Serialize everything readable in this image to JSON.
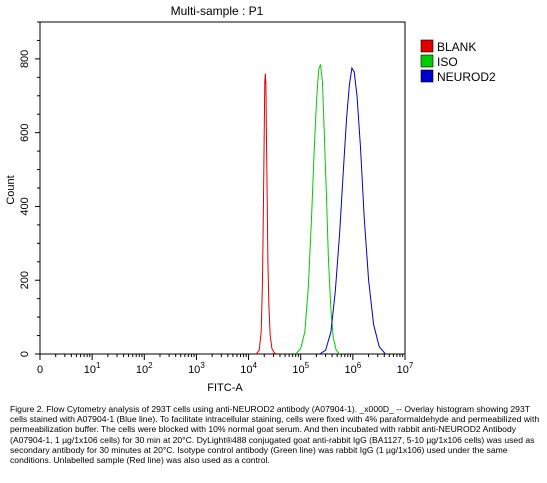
{
  "chart_data": {
    "type": "line",
    "title": "Multi-sample : P1",
    "xlabel": "FITC-A",
    "ylabel": "Count",
    "x_scale": "log",
    "xlim": [
      1,
      10000000
    ],
    "ylim": [
      0,
      900
    ],
    "x_ticks": [
      {
        "value": 1,
        "base": "0",
        "exp": ""
      },
      {
        "value": 10,
        "base": "10",
        "exp": "1"
      },
      {
        "value": 100,
        "base": "10",
        "exp": "2"
      },
      {
        "value": 1000,
        "base": "10",
        "exp": "3"
      },
      {
        "value": 10000,
        "base": "10",
        "exp": "4"
      },
      {
        "value": 100000,
        "base": "10",
        "exp": "5"
      },
      {
        "value": 1000000,
        "base": "10",
        "exp": "6"
      },
      {
        "value": 10000000,
        "base": "10",
        "exp": "7"
      }
    ],
    "y_ticks": [
      0,
      200,
      400,
      600,
      800
    ],
    "legend_position": "top-right, outside plot",
    "series": [
      {
        "name": "BLANK",
        "color": "#e00000",
        "x": [
          14000,
          16000,
          17500,
          18500,
          19300,
          20000,
          20500,
          21000,
          21500,
          22000,
          22800,
          23500,
          24500,
          26000,
          28000,
          31000,
          35000
        ],
        "y": [
          0,
          10,
          60,
          200,
          420,
          620,
          740,
          760,
          730,
          600,
          420,
          250,
          130,
          50,
          15,
          3,
          0
        ]
      },
      {
        "name": "ISO",
        "color": "#00cc00",
        "x": [
          80000,
          100000,
          120000,
          140000,
          160000,
          180000,
          200000,
          220000,
          240000,
          260000,
          280000,
          310000,
          340000,
          380000,
          420000,
          480000,
          560000
        ],
        "y": [
          0,
          15,
          60,
          180,
          360,
          540,
          680,
          770,
          785,
          740,
          620,
          440,
          260,
          120,
          45,
          10,
          0
        ]
      },
      {
        "name": "NEUROD2",
        "color": "#0000cc",
        "x": [
          230000,
          300000,
          380000,
          460000,
          560000,
          660000,
          760000,
          860000,
          960000,
          1060000,
          1200000,
          1400000,
          1650000,
          2000000,
          2500000,
          3200000,
          4200000
        ],
        "y": [
          0,
          10,
          60,
          170,
          330,
          500,
          640,
          730,
          775,
          765,
          700,
          560,
          370,
          200,
          80,
          20,
          0
        ]
      }
    ]
  },
  "caption": "Figure 2. Flow Cytometry analysis of 293T cells using anti-NEUROD2 antibody (A07904-1). _x000D_ -- Overlay histogram showing 293T cells stained with A07904-1 (Blue line). To facilitate intracellular staining, cells were fixed with 4% paraformaldehyde and permeabilized with permeabilization buffer. The cells were blocked with 10% normal goat serum. And then incubated with rabbit anti-NEUROD2 Antibody (A07904-1, 1 µg/1x106 cells) for 30 min at 20°C. DyLight®488 conjugated goat anti-rabbit IgG (BA1127, 5-10 µg/1x106 cells) was used as secondary antibody for 30 minutes at 20°C. Isotype control antibody (Green line) was rabbit IgG (1 µg/1x106) used under the same conditions. Unlabelled sample (Red line) was also used as a control."
}
